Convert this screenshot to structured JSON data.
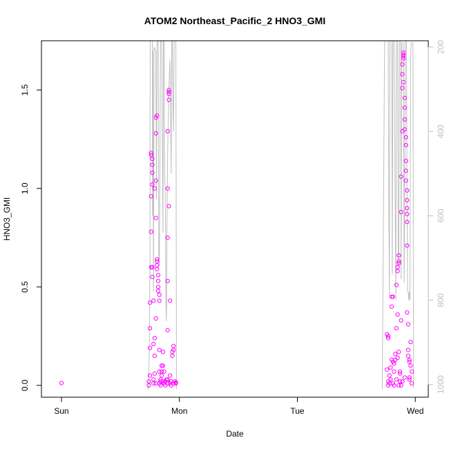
{
  "chart_data": {
    "type": "scatter",
    "title": "ATOM2 Northeast_Pacific_2 HNO3_GMI",
    "xlabel": "Date",
    "ylabel": "HNO3_GMI",
    "x_ticks": [
      {
        "label": "Sun",
        "day": 0
      },
      {
        "label": "Mon",
        "day": 1
      },
      {
        "label": "Tue",
        "day": 2
      },
      {
        "label": "Wed",
        "day": 3
      }
    ],
    "xlim_days": [
      -0.17,
      3.11
    ],
    "ylim": [
      -0.06,
      1.75
    ],
    "y_ticks": [
      0.0,
      0.5,
      1.0,
      1.5
    ],
    "y_tick_labels": [
      "0.0",
      "0.5",
      "1.0",
      "1.5"
    ],
    "right_axis": {
      "reversed": true,
      "ticks": [
        200,
        400,
        600,
        800,
        1000
      ],
      "tick_labels": [
        "200",
        "400",
        "600",
        "800",
        "1000"
      ],
      "ylim": [
        1030,
        185
      ]
    },
    "grid": false,
    "colors": {
      "points": "#ff00ff",
      "pressure_line": "#bebebe",
      "axis": "#000000",
      "right_axis": "#bebebe"
    },
    "series": [
      {
        "values_xy": [
          [
            0.0,
            0.012
          ],
          [
            0.74,
            0.0
          ],
          [
            0.74,
            0.02
          ],
          [
            0.75,
            0.05
          ],
          [
            0.75,
            0.19
          ],
          [
            0.75,
            0.29
          ],
          [
            0.75,
            0.42
          ],
          [
            0.76,
            0.6
          ],
          [
            0.76,
            0.78
          ],
          [
            0.76,
            0.96
          ],
          [
            0.76,
            1.17
          ],
          [
            0.76,
            1.18
          ],
          [
            0.77,
            1.15
          ],
          [
            0.77,
            1.12
          ],
          [
            0.77,
            1.08
          ],
          [
            0.77,
            1.02
          ],
          [
            0.77,
            0.55
          ],
          [
            0.78,
            0.43
          ],
          [
            0.78,
            0.21
          ],
          [
            0.78,
            0.03
          ],
          [
            0.78,
            0.01
          ],
          [
            0.79,
            0.06
          ],
          [
            0.79,
            0.15
          ],
          [
            0.79,
            0.24
          ],
          [
            0.8,
            0.34
          ],
          [
            0.8,
            0.01
          ],
          [
            0.8,
            1.28
          ],
          [
            0.8,
            1.36
          ],
          [
            0.81,
            1.37
          ],
          [
            0.8,
            0.85
          ],
          [
            0.8,
            1.04
          ],
          [
            0.81,
            0.63
          ],
          [
            0.81,
            0.61
          ],
          [
            0.81,
            0.64
          ],
          [
            0.81,
            0.59
          ],
          [
            0.82,
            0.56
          ],
          [
            0.82,
            0.53
          ],
          [
            0.82,
            0.5
          ],
          [
            0.82,
            0.48
          ],
          [
            0.83,
            0.46
          ],
          [
            0.83,
            0.43
          ],
          [
            0.83,
            0.18
          ],
          [
            0.83,
            0.07
          ],
          [
            0.83,
            0.01
          ],
          [
            0.84,
            0.0
          ],
          [
            0.84,
            0.02
          ],
          [
            0.84,
            0.03
          ],
          [
            0.85,
            0.05
          ],
          [
            0.85,
            0.07
          ],
          [
            0.86,
            0.1
          ],
          [
            0.86,
            0.02
          ],
          [
            0.87,
            0.01
          ],
          [
            0.87,
            0.07
          ],
          [
            0.88,
            0.0
          ],
          [
            0.88,
            0.02
          ],
          [
            0.89,
            0.03
          ],
          [
            0.9,
            0.01
          ],
          [
            0.9,
            0.03
          ],
          [
            0.9,
            0.53
          ],
          [
            0.9,
            0.75
          ],
          [
            0.9,
            1.0
          ],
          [
            0.9,
            1.29
          ],
          [
            0.91,
            1.49
          ],
          [
            0.91,
            1.5
          ],
          [
            0.91,
            1.48
          ],
          [
            0.91,
            1.45
          ],
          [
            0.91,
            0.91
          ],
          [
            0.92,
            0.43
          ],
          [
            0.92,
            0.05
          ],
          [
            0.92,
            0.01
          ],
          [
            0.93,
            0.0
          ],
          [
            0.93,
            0.02
          ],
          [
            0.94,
            0.15
          ],
          [
            0.94,
            0.17
          ],
          [
            0.95,
            0.18
          ],
          [
            0.95,
            0.2
          ],
          [
            0.95,
            0.01
          ],
          [
            0.96,
            0.02
          ],
          [
            0.97,
            0.01
          ],
          [
            0.97,
            0.015
          ],
          [
            0.86,
            0.17
          ],
          [
            0.9,
            0.28
          ],
          [
            0.77,
            0.6
          ],
          [
            0.79,
            1.0
          ],
          [
            0.85,
            0.1
          ],
          [
            2.76,
            0.08
          ],
          [
            2.76,
            0.26
          ],
          [
            2.77,
            0.25
          ],
          [
            2.77,
            0.24
          ],
          [
            2.77,
            0.0
          ],
          [
            2.77,
            0.02
          ],
          [
            2.78,
            0.05
          ],
          [
            2.78,
            0.01
          ],
          [
            2.79,
            0.03
          ],
          [
            2.8,
            0.13
          ],
          [
            2.8,
            0.4
          ],
          [
            2.8,
            0.45
          ],
          [
            2.81,
            0.45
          ],
          [
            2.81,
            0.12
          ],
          [
            2.81,
            0.01
          ],
          [
            2.82,
            0.0
          ],
          [
            2.82,
            0.07
          ],
          [
            2.83,
            0.16
          ],
          [
            2.83,
            0.13
          ],
          [
            2.84,
            0.03
          ],
          [
            2.84,
            0.29
          ],
          [
            2.84,
            0.51
          ],
          [
            2.85,
            0.36
          ],
          [
            2.85,
            0.58
          ],
          [
            2.85,
            0.6
          ],
          [
            2.86,
            0.63
          ],
          [
            2.86,
            0.62
          ],
          [
            2.86,
            0.66
          ],
          [
            2.86,
            0.17
          ],
          [
            2.87,
            0.07
          ],
          [
            2.87,
            0.02
          ],
          [
            2.88,
            0.0
          ],
          [
            2.88,
            0.33
          ],
          [
            2.88,
            0.88
          ],
          [
            2.88,
            1.06
          ],
          [
            2.89,
            1.29
          ],
          [
            2.89,
            1.51
          ],
          [
            2.89,
            1.58
          ],
          [
            2.89,
            1.63
          ],
          [
            2.9,
            1.66
          ],
          [
            2.9,
            1.67
          ],
          [
            2.9,
            1.68
          ],
          [
            2.9,
            1.69
          ],
          [
            2.9,
            1.54
          ],
          [
            2.91,
            1.46
          ],
          [
            2.91,
            1.41
          ],
          [
            2.91,
            1.35
          ],
          [
            2.91,
            1.3
          ],
          [
            2.92,
            1.26
          ],
          [
            2.92,
            1.22
          ],
          [
            2.92,
            1.14
          ],
          [
            2.92,
            1.09
          ],
          [
            2.92,
            1.04
          ],
          [
            2.93,
            0.99
          ],
          [
            2.93,
            0.94
          ],
          [
            2.93,
            0.9
          ],
          [
            2.93,
            0.87
          ],
          [
            2.93,
            0.83
          ],
          [
            2.93,
            0.71
          ],
          [
            2.93,
            0.37
          ],
          [
            2.94,
            0.31
          ],
          [
            2.94,
            0.18
          ],
          [
            2.94,
            0.15
          ],
          [
            2.95,
            0.13
          ],
          [
            2.95,
            0.12
          ],
          [
            2.95,
            0.04
          ],
          [
            2.95,
            0.03
          ],
          [
            2.96,
            0.22
          ],
          [
            2.96,
            0.1
          ],
          [
            2.97,
            0.07
          ],
          [
            2.97,
            0.01
          ],
          [
            2.79,
            0.09
          ],
          [
            2.82,
            0.11
          ],
          [
            2.86,
            0.0
          ],
          [
            2.91,
            0.04
          ],
          [
            2.85,
            0.14
          ],
          [
            2.87,
            0.06
          ],
          [
            2.89,
            0.02
          ]
        ]
      }
    ],
    "pressure_line": [
      [
        0.73,
        1012
      ],
      [
        0.74,
        1000
      ],
      [
        0.745,
        900
      ],
      [
        0.75,
        700
      ],
      [
        0.752,
        185
      ],
      [
        0.77,
        185
      ],
      [
        0.772,
        600
      ],
      [
        0.775,
        210
      ],
      [
        0.78,
        780
      ],
      [
        0.785,
        200
      ],
      [
        0.8,
        210
      ],
      [
        0.805,
        560
      ],
      [
        0.81,
        185
      ],
      [
        0.82,
        185
      ],
      [
        0.825,
        700
      ],
      [
        0.83,
        720
      ],
      [
        0.835,
        450
      ],
      [
        0.84,
        185
      ],
      [
        0.85,
        185
      ],
      [
        0.86,
        640
      ],
      [
        0.865,
        185
      ],
      [
        0.87,
        185
      ],
      [
        0.875,
        500
      ],
      [
        0.88,
        550
      ],
      [
        0.885,
        800
      ],
      [
        0.89,
        850
      ],
      [
        0.895,
        600
      ],
      [
        0.9,
        450
      ],
      [
        0.91,
        300
      ],
      [
        0.92,
        230
      ],
      [
        0.93,
        500
      ],
      [
        0.935,
        185
      ],
      [
        0.94,
        185
      ],
      [
        0.945,
        330
      ],
      [
        0.95,
        400
      ],
      [
        0.955,
        185
      ],
      [
        0.97,
        185
      ],
      [
        0.975,
        1010
      ],
      [
        2.72,
        1012
      ],
      [
        2.74,
        185
      ],
      [
        2.77,
        185
      ],
      [
        2.775,
        560
      ],
      [
        2.78,
        790
      ],
      [
        2.785,
        185
      ],
      [
        2.8,
        185
      ],
      [
        2.805,
        740
      ],
      [
        2.81,
        185
      ],
      [
        2.82,
        185
      ],
      [
        2.83,
        600
      ],
      [
        2.835,
        800
      ],
      [
        2.84,
        185
      ],
      [
        2.85,
        185
      ],
      [
        2.855,
        700
      ],
      [
        2.86,
        720
      ],
      [
        2.865,
        185
      ],
      [
        2.875,
        185
      ],
      [
        2.88,
        750
      ],
      [
        2.885,
        190
      ],
      [
        2.9,
        190
      ],
      [
        2.905,
        760
      ],
      [
        2.91,
        580
      ],
      [
        2.915,
        185
      ],
      [
        2.925,
        185
      ],
      [
        2.93,
        580
      ],
      [
        2.935,
        780
      ],
      [
        2.94,
        780
      ],
      [
        2.945,
        800
      ],
      [
        2.95,
        780
      ],
      [
        2.955,
        800
      ],
      [
        2.96,
        230
      ],
      [
        2.965,
        190
      ],
      [
        2.98,
        190
      ],
      [
        2.985,
        1008
      ]
    ]
  }
}
